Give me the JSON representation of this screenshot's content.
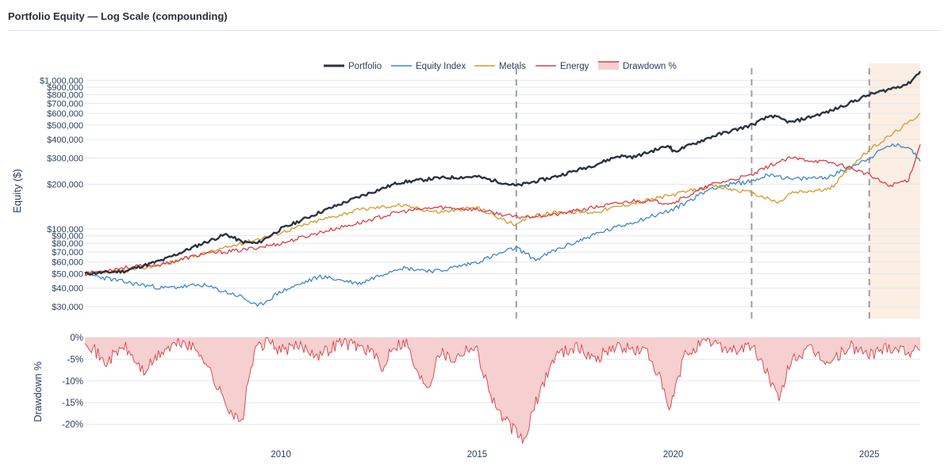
{
  "header": {
    "title": "Portfolio Equity — Log Scale (compounding)"
  },
  "colors": {
    "portfolio": "#2a3341",
    "equity_index": "#3f86c9",
    "metals": "#d49a2a",
    "energy": "#d93f45",
    "drawdown_fill": "#f6cfd0",
    "drawdown_line": "#d93f45",
    "shade": "#fbeee3",
    "grid": "#e4e8f0",
    "vline": "#9aa0a6"
  },
  "chart_data": [
    {
      "type": "line",
      "yscale": "log",
      "ylabel": "Equity ($)",
      "xlim": [
        2005.0,
        2026.3
      ],
      "ylim": [
        25000,
        1300000
      ],
      "ytick_values": [
        30000,
        40000,
        50000,
        60000,
        70000,
        80000,
        90000,
        100000,
        200000,
        300000,
        400000,
        500000,
        600000,
        700000,
        800000,
        900000,
        1000000
      ],
      "ytick_labels": [
        "$30,000",
        "$40,000",
        "$50,000",
        "$60,000",
        "$70,000",
        "$80,000",
        "$90,000",
        "$100,000",
        "$200,000",
        "$300,000",
        "$400,000",
        "$500,000",
        "$600,000",
        "$700,000",
        "$800,000",
        "$900,000",
        "$1,000,000"
      ],
      "legend": [
        "Portfolio",
        "Equity Index",
        "Metals",
        "Energy",
        "Drawdown %"
      ],
      "legend_position": "top-center",
      "vlines": [
        2016.0,
        2022.0,
        2025.0
      ],
      "shaded_region": [
        2025.0,
        2026.3
      ],
      "series": [
        {
          "name": "Portfolio",
          "x": [
            2005.0,
            2006.0,
            2007.0,
            2008.0,
            2008.6,
            2009.0,
            2009.4,
            2010.0,
            2011.0,
            2012.0,
            2013.0,
            2014.0,
            2015.0,
            2016.0,
            2017.0,
            2018.0,
            2018.6,
            2019.0,
            2019.9,
            2020.0,
            2021.0,
            2022.0,
            2022.5,
            2023.0,
            2024.0,
            2025.0,
            2025.5,
            2026.0,
            2026.3
          ],
          "y": [
            50000,
            52000,
            62000,
            80000,
            92000,
            82000,
            80000,
            100000,
            130000,
            165000,
            205000,
            220000,
            225000,
            195000,
            225000,
            270000,
            310000,
            305000,
            365000,
            330000,
            420000,
            500000,
            580000,
            520000,
            620000,
            800000,
            870000,
            950000,
            1150000
          ]
        },
        {
          "name": "Equity Index",
          "x": [
            2005.0,
            2006.0,
            2007.0,
            2008.0,
            2009.0,
            2009.4,
            2010.0,
            2011.0,
            2012.0,
            2013.0,
            2014.0,
            2015.0,
            2016.0,
            2016.5,
            2017.0,
            2018.0,
            2019.0,
            2020.0,
            2021.0,
            2022.0,
            2022.5,
            2023.0,
            2024.0,
            2025.0,
            2025.5,
            2026.0,
            2026.3
          ],
          "y": [
            50000,
            44000,
            40000,
            42000,
            35000,
            30000,
            38000,
            48000,
            43000,
            55000,
            52000,
            60000,
            75000,
            62000,
            72000,
            92000,
            112000,
            135000,
            190000,
            210000,
            235000,
            215000,
            225000,
            300000,
            365000,
            360000,
            285000
          ]
        },
        {
          "name": "Metals",
          "x": [
            2005.0,
            2006.0,
            2007.0,
            2008.0,
            2009.0,
            2010.0,
            2011.0,
            2012.0,
            2013.0,
            2014.0,
            2015.0,
            2016.0,
            2016.3,
            2017.0,
            2018.0,
            2019.0,
            2020.0,
            2021.0,
            2022.0,
            2022.7,
            2023.0,
            2024.0,
            2024.5,
            2025.0,
            2025.5,
            2026.0,
            2026.3
          ],
          "y": [
            50000,
            52000,
            58000,
            68000,
            80000,
            95000,
            115000,
            135000,
            145000,
            130000,
            140000,
            105000,
            120000,
            130000,
            130000,
            150000,
            170000,
            195000,
            175000,
            150000,
            175000,
            185000,
            260000,
            340000,
            420000,
            520000,
            600000
          ]
        },
        {
          "name": "Energy",
          "x": [
            2005.0,
            2006.0,
            2007.0,
            2008.0,
            2009.0,
            2010.0,
            2011.0,
            2012.0,
            2013.0,
            2014.0,
            2015.0,
            2016.0,
            2017.0,
            2018.0,
            2019.0,
            2020.0,
            2021.0,
            2022.0,
            2022.5,
            2023.0,
            2024.0,
            2024.5,
            2025.0,
            2025.5,
            2026.0,
            2026.3
          ],
          "y": [
            50000,
            55000,
            58000,
            68000,
            72000,
            80000,
            95000,
            110000,
            130000,
            140000,
            135000,
            120000,
            125000,
            140000,
            155000,
            150000,
            200000,
            230000,
            270000,
            300000,
            280000,
            260000,
            230000,
            195000,
            215000,
            370000
          ]
        }
      ]
    },
    {
      "type": "area",
      "ylabel": "Drawdown %",
      "xlim": [
        2005.0,
        2026.3
      ],
      "ylim": [
        -25,
        0
      ],
      "ytick_values": [
        0,
        -5,
        -10,
        -15,
        -20
      ],
      "ytick_labels": [
        "0%",
        "-5%",
        "-10%",
        "-15%",
        "-20%"
      ],
      "xtick_values": [
        2010,
        2015,
        2020,
        2025
      ],
      "xtick_labels": [
        "2010",
        "2015",
        "2020",
        "2025"
      ],
      "series": [
        {
          "name": "Drawdown %",
          "x": [
            2005.0,
            2005.5,
            2006.0,
            2006.5,
            2007.0,
            2007.5,
            2008.0,
            2008.4,
            2008.8,
            2009.0,
            2009.2,
            2009.4,
            2009.7,
            2010.0,
            2010.5,
            2011.0,
            2011.5,
            2012.0,
            2012.3,
            2012.6,
            2012.8,
            2013.2,
            2013.5,
            2013.8,
            2014.0,
            2014.4,
            2014.8,
            2015.0,
            2015.3,
            2015.6,
            2016.0,
            2016.2,
            2016.5,
            2016.8,
            2017.0,
            2017.5,
            2018.0,
            2018.5,
            2019.0,
            2019.3,
            2019.6,
            2019.9,
            2020.3,
            2020.6,
            2021.0,
            2021.5,
            2022.0,
            2022.4,
            2022.7,
            2023.0,
            2023.5,
            2024.0,
            2024.5,
            2025.0,
            2025.5,
            2026.0,
            2026.3
          ],
          "y": [
            0,
            -6,
            -2,
            -8,
            -3,
            -1,
            -4,
            -12,
            -18,
            -20,
            -8,
            -2,
            -1,
            -3,
            -2,
            -4,
            -1,
            -2,
            -3,
            -8,
            -2,
            -1,
            -9,
            -11,
            -3,
            -5,
            -2,
            -3,
            -12,
            -18,
            -22,
            -24,
            -15,
            -8,
            -4,
            -2,
            -5,
            -2,
            -3,
            -3,
            -8,
            -17,
            -4,
            -2,
            -1,
            -3,
            -2,
            -8,
            -15,
            -5,
            -3,
            -6,
            -2,
            -4,
            -2,
            -3,
            -3
          ]
        }
      ]
    }
  ]
}
